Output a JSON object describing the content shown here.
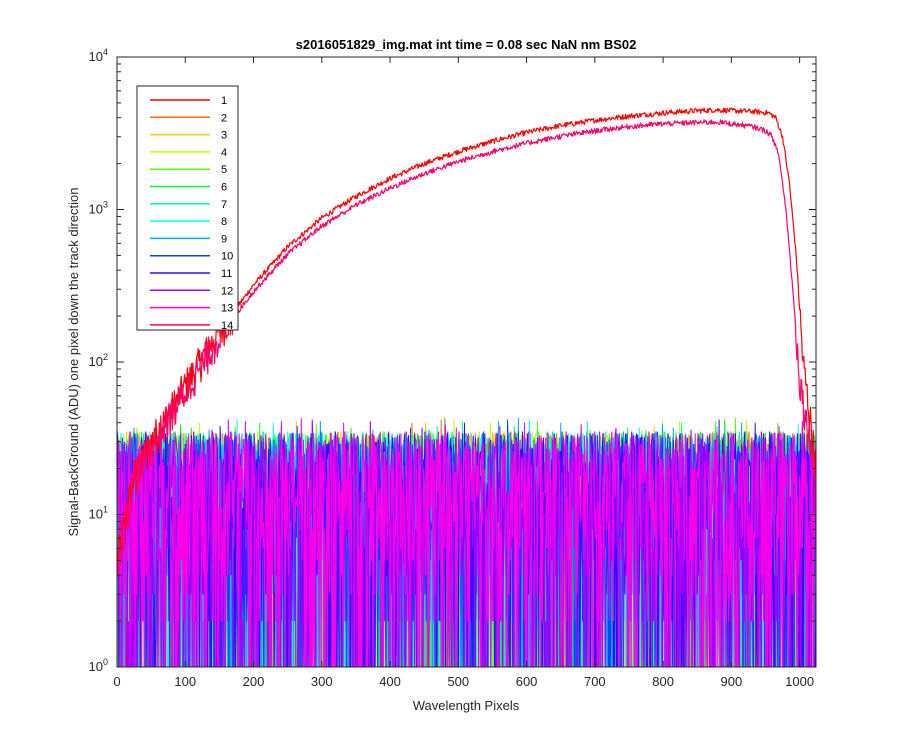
{
  "chart_data": {
    "type": "line",
    "title": "s2016051829_img.mat int time = 0.08 sec  NaN nm BS02",
    "xlabel": "Wavelength Pixels",
    "ylabel": "Signal-BackGround (ADU) one pixel down the track direction",
    "xlim": [
      0,
      1024
    ],
    "ylim": [
      1,
      10000
    ],
    "yscale": "log",
    "grid": false,
    "legend_position": "top-left",
    "x_ticks": [
      "0",
      "100",
      "200",
      "300",
      "400",
      "500",
      "600",
      "700",
      "800",
      "900",
      "1000"
    ],
    "x_tick_values": [
      0,
      100,
      200,
      300,
      400,
      500,
      600,
      700,
      800,
      900,
      1000
    ],
    "y_ticks": [
      {
        "base": "10",
        "exp": "0",
        "value": 1
      },
      {
        "base": "10",
        "exp": "1",
        "value": 10
      },
      {
        "base": "10",
        "exp": "2",
        "value": 100
      },
      {
        "base": "10",
        "exp": "3",
        "value": 1000
      },
      {
        "base": "10",
        "exp": "4",
        "value": 10000
      }
    ],
    "series": [
      {
        "name": "1",
        "color": "#ff0000",
        "kind": "signal",
        "x": [
          0,
          25,
          50,
          75,
          100,
          150,
          200,
          250,
          300,
          350,
          400,
          450,
          500,
          550,
          600,
          650,
          700,
          750,
          800,
          850,
          880,
          900,
          930,
          955,
          965,
          975,
          985,
          995,
          1005,
          1015,
          1024
        ],
        "values": [
          5,
          18,
          30,
          45,
          70,
          160,
          320,
          570,
          880,
          1220,
          1600,
          2000,
          2400,
          2800,
          3200,
          3550,
          3850,
          4100,
          4300,
          4450,
          4500,
          4450,
          4400,
          4300,
          4000,
          3000,
          1500,
          500,
          100,
          45,
          20
        ]
      },
      {
        "name": "2",
        "color": "#ff6a00",
        "kind": "noise"
      },
      {
        "name": "3",
        "color": "#ffcc00",
        "kind": "noise"
      },
      {
        "name": "4",
        "color": "#bfff00",
        "kind": "noise"
      },
      {
        "name": "5",
        "color": "#55ff00",
        "kind": "noise"
      },
      {
        "name": "6",
        "color": "#00ff3a",
        "kind": "noise"
      },
      {
        "name": "7",
        "color": "#00ffa0",
        "kind": "noise"
      },
      {
        "name": "8",
        "color": "#00ffee",
        "kind": "noise"
      },
      {
        "name": "9",
        "color": "#00aaff",
        "kind": "noise"
      },
      {
        "name": "10",
        "color": "#0040ff",
        "kind": "noise"
      },
      {
        "name": "11",
        "color": "#4000ff",
        "kind": "noise"
      },
      {
        "name": "12",
        "color": "#aa00ff",
        "kind": "noise"
      },
      {
        "name": "13",
        "color": "#ff00e6",
        "kind": "noise"
      },
      {
        "name": "14",
        "color": "#ff0066",
        "kind": "signal",
        "x": [
          0,
          25,
          50,
          75,
          100,
          150,
          200,
          250,
          300,
          350,
          400,
          450,
          500,
          550,
          600,
          650,
          700,
          750,
          800,
          850,
          880,
          900,
          930,
          950,
          960,
          970,
          980,
          990,
          1000,
          1010,
          1020,
          1024
        ],
        "values": [
          5,
          17,
          28,
          42,
          65,
          150,
          290,
          510,
          780,
          1070,
          1380,
          1720,
          2060,
          2400,
          2720,
          3020,
          3280,
          3500,
          3650,
          3720,
          3750,
          3650,
          3500,
          3300,
          3000,
          2200,
          1000,
          300,
          80,
          40,
          25,
          12
        ]
      }
    ]
  }
}
